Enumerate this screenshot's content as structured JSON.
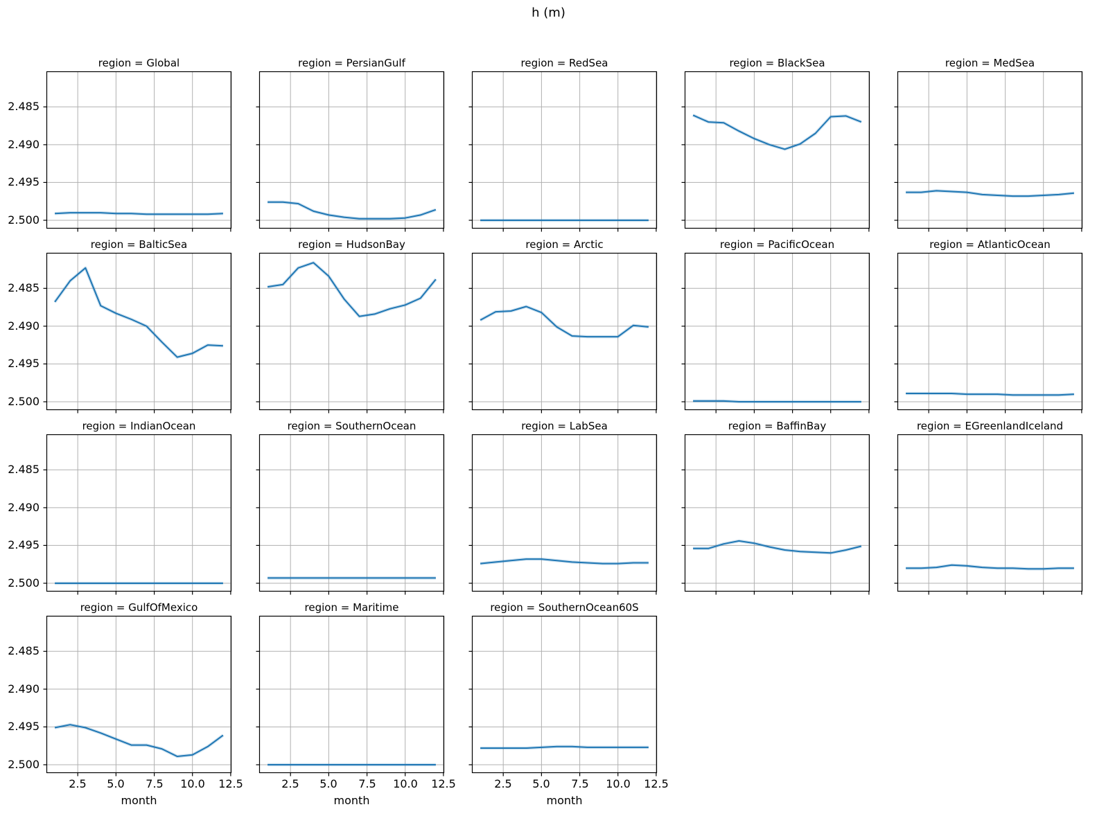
{
  "suptitle": "h (m)",
  "colors": {
    "line": "#1f77b4",
    "band": "rgba(31,119,180,0.22)",
    "grid": "#b0b0b0",
    "spine": "#000000",
    "text": "#000000"
  },
  "chart_data": {
    "type": "line",
    "title": "h (m)",
    "xlabel": "month",
    "ylabel": "",
    "facet_title_prefix": "region = ",
    "layout": {
      "rows": 4,
      "cols": 5,
      "grid_on": true,
      "y_inverted": true,
      "ylim": [
        2.5011,
        2.4803
      ],
      "xlim": [
        0.45,
        12.55
      ],
      "yticks": [
        2.485,
        2.49,
        2.495,
        2.5
      ],
      "xticks": [
        2.5,
        5.0,
        7.5,
        10.0,
        12.5
      ]
    },
    "x": [
      1,
      2,
      3,
      4,
      5,
      6,
      7,
      8,
      9,
      10,
      11,
      12
    ],
    "series": [
      {
        "name": "Global",
        "values": [
          2.4991,
          2.499,
          2.499,
          2.499,
          2.4991,
          2.4991,
          2.4992,
          2.4992,
          2.4992,
          2.4992,
          2.4992,
          2.4991
        ]
      },
      {
        "name": "PersianGulf",
        "values": [
          2.4976,
          2.4976,
          2.4978,
          2.4988,
          2.4993,
          2.4996,
          2.4998,
          2.4998,
          2.4998,
          2.4997,
          2.4993,
          2.4986
        ]
      },
      {
        "name": "RedSea",
        "values": [
          2.5,
          2.5,
          2.5,
          2.5,
          2.5,
          2.5,
          2.5,
          2.5,
          2.5,
          2.5,
          2.5,
          2.5
        ]
      },
      {
        "name": "BlackSea",
        "values": [
          2.4861,
          2.487,
          2.4871,
          2.4882,
          2.4892,
          2.49,
          2.4906,
          2.4899,
          2.4885,
          2.4863,
          2.4862,
          2.487
        ]
      },
      {
        "name": "MedSea",
        "values": [
          2.4963,
          2.4963,
          2.4961,
          2.4962,
          2.4963,
          2.4966,
          2.4967,
          2.4968,
          2.4968,
          2.4967,
          2.4966,
          2.4964
        ]
      },
      {
        "name": "BalticSea",
        "values": [
          2.4868,
          2.484,
          2.4823,
          2.4873,
          2.4883,
          2.4891,
          2.49,
          2.4921,
          2.4941,
          2.4936,
          2.4925,
          2.4926
        ]
      },
      {
        "name": "HudsonBay",
        "values": [
          2.4848,
          2.4845,
          2.4823,
          2.4816,
          2.4834,
          2.4864,
          2.4887,
          2.4884,
          2.4877,
          2.4872,
          2.4863,
          2.4838
        ]
      },
      {
        "name": "Arctic",
        "values": [
          2.4892,
          2.4881,
          2.488,
          2.4874,
          2.4882,
          2.4901,
          2.4913,
          2.4914,
          2.4914,
          2.4914,
          2.4899,
          2.4901
        ]
      },
      {
        "name": "PacificOcean",
        "values": [
          2.4999,
          2.4999,
          2.4999,
          2.5,
          2.5,
          2.5,
          2.5,
          2.5,
          2.5,
          2.5,
          2.5,
          2.5
        ]
      },
      {
        "name": "AtlanticOcean",
        "values": [
          2.4989,
          2.4989,
          2.4989,
          2.4989,
          2.499,
          2.499,
          2.499,
          2.4991,
          2.4991,
          2.4991,
          2.4991,
          2.499
        ]
      },
      {
        "name": "IndianOcean",
        "values": [
          2.5,
          2.5,
          2.5,
          2.5,
          2.5,
          2.5,
          2.5,
          2.5,
          2.5,
          2.5,
          2.5,
          2.5
        ]
      },
      {
        "name": "SouthernOcean",
        "values": [
          2.4993,
          2.4993,
          2.4993,
          2.4993,
          2.4993,
          2.4993,
          2.4993,
          2.4993,
          2.4993,
          2.4993,
          2.4993,
          2.4993
        ]
      },
      {
        "name": "LabSea",
        "values": [
          2.4974,
          2.4972,
          2.497,
          2.4968,
          2.4968,
          2.497,
          2.4972,
          2.4973,
          2.4974,
          2.4974,
          2.4973,
          2.4973
        ]
      },
      {
        "name": "BaffinBay",
        "values": [
          2.4954,
          2.4954,
          2.4948,
          2.4944,
          2.4947,
          2.4952,
          2.4956,
          2.4958,
          2.4959,
          2.496,
          2.4956,
          2.4951
        ]
      },
      {
        "name": "EGreenlandIceland",
        "values": [
          2.498,
          2.498,
          2.4979,
          2.4976,
          2.4977,
          2.4979,
          2.498,
          2.498,
          2.4981,
          2.4981,
          2.498,
          2.498
        ]
      },
      {
        "name": "GulfOfMexico",
        "values": [
          2.4951,
          2.4947,
          2.4951,
          2.4958,
          2.4966,
          2.4974,
          2.4974,
          2.4979,
          2.4989,
          2.4987,
          2.4976,
          2.4961
        ]
      },
      {
        "name": "Maritime",
        "values": [
          2.5,
          2.5,
          2.5,
          2.5,
          2.5,
          2.5,
          2.5,
          2.5,
          2.5,
          2.5,
          2.5,
          2.5
        ]
      },
      {
        "name": "SouthernOcean60S",
        "values": [
          2.4978,
          2.4978,
          2.4978,
          2.4978,
          2.4977,
          2.4976,
          2.4976,
          2.4977,
          2.4977,
          2.4977,
          2.4977,
          2.4977
        ]
      }
    ]
  }
}
